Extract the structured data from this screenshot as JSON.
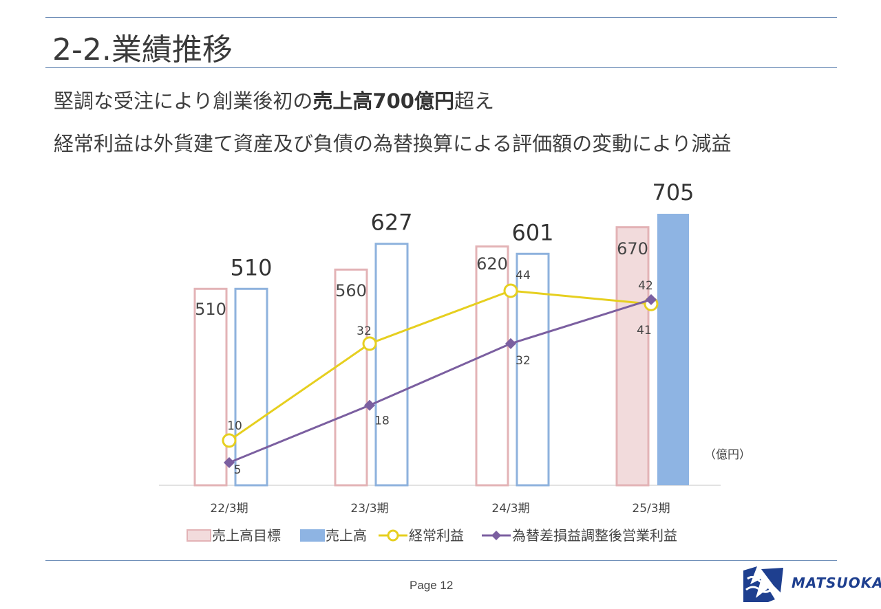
{
  "slide": {
    "title": "2-2.業績推移",
    "line1_pre": "堅調な受注により創業後初の",
    "line1_bold": "売上高700億円",
    "line1_post": "超え",
    "line2": "経常利益は外貨建て資産及び負債の為替換算による評価額の変動により減益",
    "page": "Page 12",
    "logo_text": "MATSUOKA"
  },
  "colors": {
    "rule": "#6f8fb8",
    "target_outline": "#e3b3b6",
    "target_fill": "#f2dbdc",
    "sales_outline": "#8eb2dd",
    "sales_fill": "#8eb4e3",
    "ordinary": "#e6cf1f",
    "adjusted": "#7b5fa0",
    "logo": "#1e3f8f"
  },
  "chart_data": {
    "type": "bar",
    "unit_label": "（億円）",
    "categories": [
      "22/3期",
      "23/3期",
      "24/3期",
      "25/3期"
    ],
    "bar_series": [
      {
        "name": "売上高目標",
        "values": [
          510,
          560,
          620,
          670
        ],
        "filled_last_only": true
      },
      {
        "name": "売上高",
        "values": [
          510,
          627,
          601,
          705
        ],
        "filled_last_only": true
      }
    ],
    "line_series": [
      {
        "name": "経常利益",
        "values": [
          10,
          32,
          44,
          41
        ],
        "marker": "circle"
      },
      {
        "name": "為替差損益調整後営業利益",
        "values": [
          5,
          18,
          32,
          42
        ],
        "marker": "diamond"
      }
    ],
    "legend_position": "bottom",
    "grid": false
  }
}
